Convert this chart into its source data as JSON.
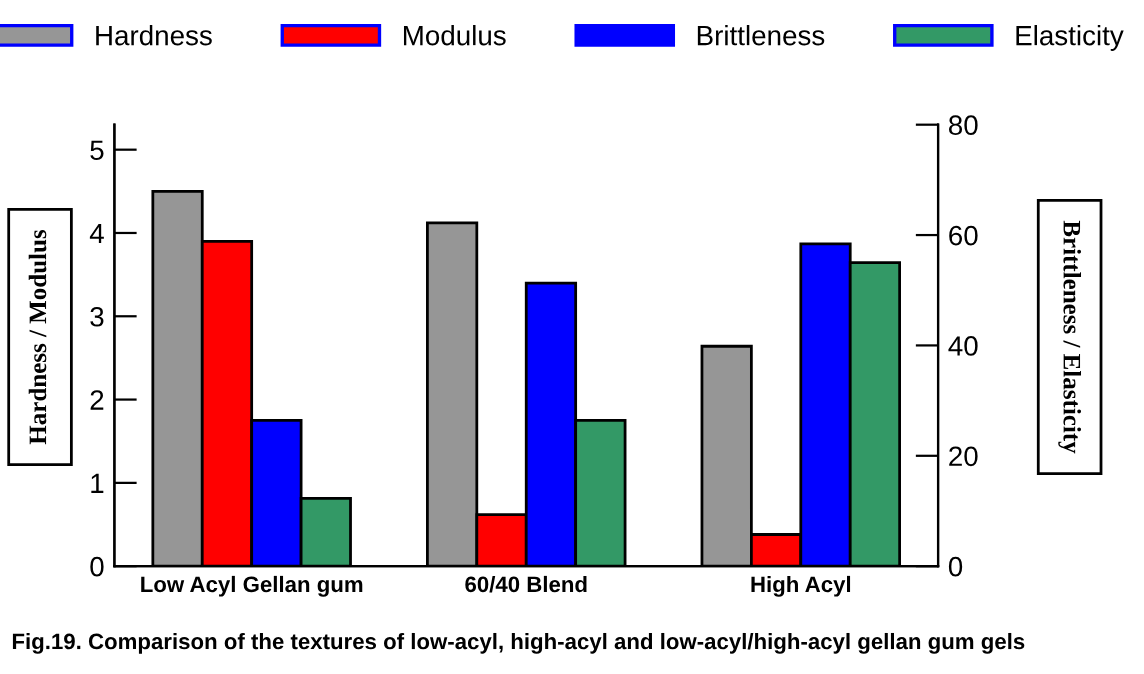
{
  "chart_data": {
    "type": "bar",
    "categories": [
      "Low Acyl Gellan gum",
      "60/40 Blend",
      "High Acyl"
    ],
    "series": [
      {
        "name": "Hardness",
        "color": "#969696",
        "values": [
          4.5,
          4.12,
          2.64
        ]
      },
      {
        "name": "Modulus",
        "color": "#ff0000",
        "values": [
          3.9,
          0.62,
          0.38
        ]
      },
      {
        "name": "Brittleness",
        "color": "#0000ff",
        "values": [
          26.4,
          51.3,
          58.4
        ],
        "axis": "y2"
      },
      {
        "name": "Elasticity",
        "color": "#339966",
        "values": [
          12.3,
          26.4,
          55
        ],
        "axis": "y2"
      }
    ],
    "ylabel": "Hardness / Modulus",
    "y2label": "Brittleness / Elasticity",
    "ylim": [
      0,
      5.3
    ],
    "yticks": [
      0,
      1,
      2,
      3,
      4,
      5
    ],
    "y2lim": [
      0,
      80
    ],
    "y2ticks": [
      0,
      20,
      40,
      60,
      80
    ],
    "legend": "top",
    "grid": false,
    "annotations": [
      "Fig.19. Comparison of the textures of low-acyl, high-acyl and low-acyl/high-acyl gellan gum gels"
    ]
  }
}
